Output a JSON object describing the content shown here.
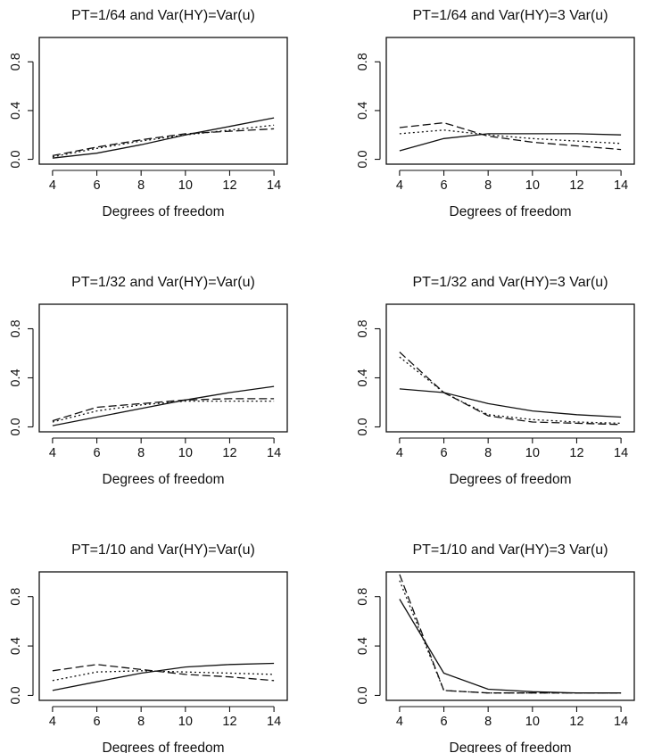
{
  "chart_data": [
    {
      "type": "line",
      "title": "PT=1/64 and Var(HY)=Var(u)",
      "xlabel": "Degrees of freedom",
      "ylabel": "",
      "x": [
        4,
        6,
        8,
        10,
        12,
        14
      ],
      "xticks": [
        "4",
        "6",
        "8",
        "10",
        "12",
        "14"
      ],
      "yticks": [
        "0.0",
        "0.4",
        "0.8"
      ],
      "xlim": [
        3.4,
        14.6
      ],
      "ylim": [
        -0.04,
        1.0
      ],
      "series": [
        {
          "line_style": "solid",
          "values": [
            0.01,
            0.05,
            0.12,
            0.2,
            0.27,
            0.34
          ]
        },
        {
          "line_style": "dotted",
          "values": [
            0.02,
            0.09,
            0.15,
            0.2,
            0.24,
            0.28
          ]
        },
        {
          "line_style": "dashed",
          "values": [
            0.03,
            0.1,
            0.16,
            0.21,
            0.23,
            0.25
          ]
        }
      ]
    },
    {
      "type": "line",
      "title": "PT=1/64 and Var(HY)=3 Var(u)",
      "xlabel": "Degrees of freedom",
      "ylabel": "",
      "x": [
        4,
        6,
        8,
        10,
        12,
        14
      ],
      "xticks": [
        "4",
        "6",
        "8",
        "10",
        "12",
        "14"
      ],
      "yticks": [
        "0.0",
        "0.4",
        "0.8"
      ],
      "xlim": [
        3.4,
        14.6
      ],
      "ylim": [
        -0.04,
        1.0
      ],
      "series": [
        {
          "line_style": "solid",
          "values": [
            0.07,
            0.17,
            0.21,
            0.21,
            0.21,
            0.2
          ]
        },
        {
          "line_style": "dotted",
          "values": [
            0.21,
            0.24,
            0.2,
            0.17,
            0.15,
            0.13
          ]
        },
        {
          "line_style": "dashed",
          "values": [
            0.26,
            0.3,
            0.19,
            0.14,
            0.11,
            0.08
          ]
        }
      ]
    },
    {
      "type": "line",
      "title": "PT=1/32 and Var(HY)=Var(u)",
      "xlabel": "Degrees of freedom",
      "ylabel": "",
      "x": [
        4,
        6,
        8,
        10,
        12,
        14
      ],
      "xticks": [
        "4",
        "6",
        "8",
        "10",
        "12",
        "14"
      ],
      "yticks": [
        "0.0",
        "0.4",
        "0.8"
      ],
      "xlim": [
        3.4,
        14.6
      ],
      "ylim": [
        -0.04,
        1.0
      ],
      "series": [
        {
          "line_style": "solid",
          "values": [
            0.01,
            0.08,
            0.15,
            0.22,
            0.28,
            0.33
          ]
        },
        {
          "line_style": "dotted",
          "values": [
            0.04,
            0.13,
            0.18,
            0.21,
            0.21,
            0.21
          ]
        },
        {
          "line_style": "dashed",
          "values": [
            0.05,
            0.16,
            0.19,
            0.22,
            0.23,
            0.23
          ]
        }
      ]
    },
    {
      "type": "line",
      "title": "PT=1/32 and Var(HY)=3 Var(u)",
      "xlabel": "Degrees of freedom",
      "ylabel": "",
      "x": [
        4,
        6,
        8,
        10,
        12,
        14
      ],
      "xticks": [
        "4",
        "6",
        "8",
        "10",
        "12",
        "14"
      ],
      "yticks": [
        "0.0",
        "0.4",
        "0.8"
      ],
      "xlim": [
        3.4,
        14.6
      ],
      "ylim": [
        -0.04,
        1.0
      ],
      "series": [
        {
          "line_style": "solid",
          "values": [
            0.31,
            0.28,
            0.19,
            0.13,
            0.1,
            0.08
          ]
        },
        {
          "line_style": "dotted",
          "values": [
            0.57,
            0.28,
            0.1,
            0.06,
            0.04,
            0.03
          ]
        },
        {
          "line_style": "dashed",
          "values": [
            0.61,
            0.28,
            0.09,
            0.04,
            0.03,
            0.02
          ]
        }
      ]
    },
    {
      "type": "line",
      "title": "PT=1/10 and Var(HY)=Var(u)",
      "xlabel": "Degrees of freedom",
      "ylabel": "",
      "x": [
        4,
        6,
        8,
        10,
        12,
        14
      ],
      "xticks": [
        "4",
        "6",
        "8",
        "10",
        "12",
        "14"
      ],
      "yticks": [
        "0.0",
        "0.4",
        "0.8"
      ],
      "xlim": [
        3.4,
        14.6
      ],
      "ylim": [
        -0.04,
        1.0
      ],
      "series": [
        {
          "line_style": "solid",
          "values": [
            0.04,
            0.11,
            0.18,
            0.23,
            0.25,
            0.26
          ]
        },
        {
          "line_style": "dotted",
          "values": [
            0.12,
            0.19,
            0.2,
            0.19,
            0.18,
            0.17
          ]
        },
        {
          "line_style": "dashed",
          "values": [
            0.2,
            0.25,
            0.21,
            0.17,
            0.15,
            0.12
          ]
        }
      ]
    },
    {
      "type": "line",
      "title": "PT=1/10 and Var(HY)=3 Var(u)",
      "xlabel": "Degrees of freedom",
      "ylabel": "",
      "x": [
        4,
        6,
        8,
        10,
        12,
        14
      ],
      "xticks": [
        "4",
        "6",
        "8",
        "10",
        "12",
        "14"
      ],
      "yticks": [
        "0.0",
        "0.4",
        "0.8"
      ],
      "xlim": [
        3.4,
        14.6
      ],
      "ylim": [
        -0.04,
        1.0
      ],
      "series": [
        {
          "line_style": "solid",
          "values": [
            0.78,
            0.18,
            0.05,
            0.03,
            0.02,
            0.02
          ]
        },
        {
          "line_style": "dotted",
          "values": [
            0.93,
            0.04,
            0.02,
            0.02,
            0.02,
            0.02
          ]
        },
        {
          "line_style": "dashed",
          "values": [
            0.98,
            0.04,
            0.02,
            0.02,
            0.02,
            0.02
          ]
        }
      ]
    }
  ]
}
